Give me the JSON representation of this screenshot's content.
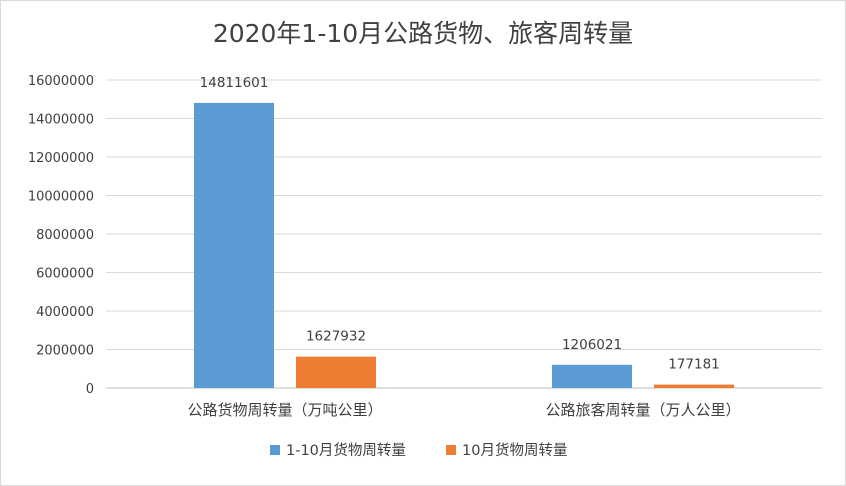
{
  "chart_data": {
    "type": "bar",
    "title": "2020年1-10月公路货物、旅客周转量",
    "categories": [
      "公路货物周转量（万吨公里）",
      "公路旅客周转量（万人公里）"
    ],
    "series": [
      {
        "name": "1-10月货物周转量",
        "values": [
          14811601,
          1206021
        ],
        "labels": [
          "14811601",
          "1206021"
        ],
        "color": "#5b9bd5"
      },
      {
        "name": "10月货物周转量",
        "values": [
          1627932,
          177181
        ],
        "labels": [
          "1627932",
          "177181"
        ],
        "color": "#ed7d31"
      }
    ],
    "ylim": [
      0,
      16000000
    ],
    "yticks": [
      "0",
      "2000000",
      "4000000",
      "6000000",
      "8000000",
      "10000000",
      "12000000",
      "14000000",
      "16000000"
    ],
    "grid": true,
    "legend": "bottom"
  }
}
